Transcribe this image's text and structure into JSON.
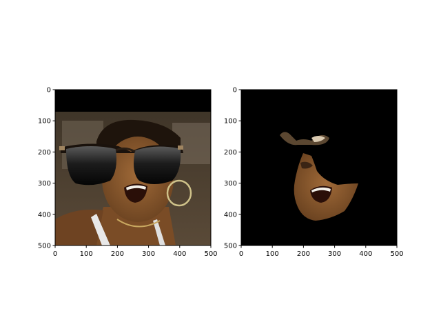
{
  "chart_data": [
    {
      "type": "image",
      "title": "",
      "xlabel": "",
      "ylabel": "",
      "xlim": [
        0,
        500
      ],
      "ylim": [
        500,
        0
      ],
      "xticks": [
        0,
        100,
        200,
        300,
        400,
        500
      ],
      "yticks": [
        0,
        100,
        200,
        300,
        400,
        500
      ],
      "content": "portrait with sunglasses overlay"
    },
    {
      "type": "image",
      "title": "",
      "xlabel": "",
      "ylabel": "",
      "xlim": [
        0,
        500
      ],
      "ylim": [
        500,
        0
      ],
      "xticks": [
        0,
        100,
        200,
        300,
        400,
        500
      ],
      "yticks": [
        0,
        100,
        200,
        300,
        400,
        500
      ],
      "content": "masked face region on black background"
    }
  ],
  "colors": {
    "axes_spine": "#000000",
    "background": "#ffffff",
    "mask_background": "#000000",
    "skin": "#8a5a2e"
  }
}
